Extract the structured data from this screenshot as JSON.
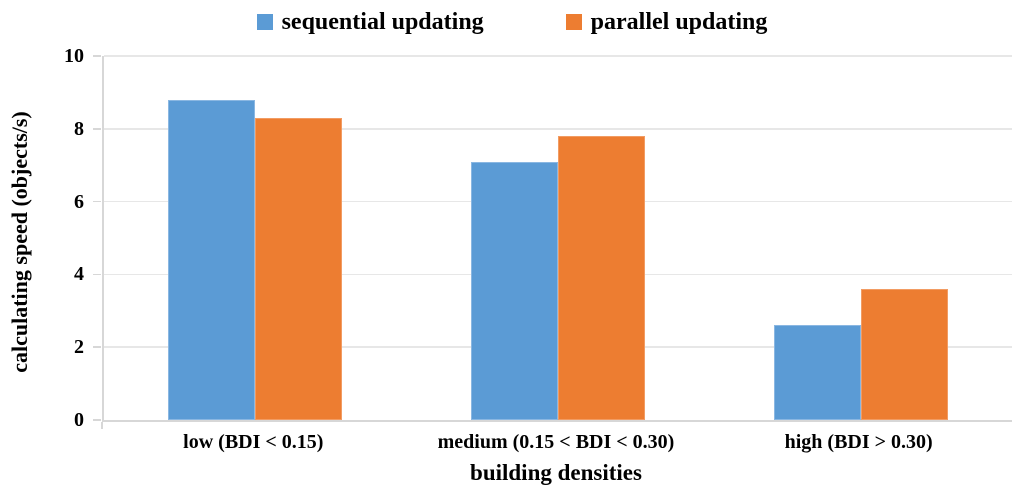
{
  "chart_data": {
    "type": "bar",
    "title": "",
    "categories": [
      "low (BDI < 0.15)",
      "medium (0.15 < BDI < 0.30)",
      "high (BDI > 0.30)"
    ],
    "series": [
      {
        "name": "sequential updating",
        "color": "#5b9bd5",
        "values": [
          8.8,
          7.1,
          2.6
        ]
      },
      {
        "name": "parallel updating",
        "color": "#ed7d31",
        "values": [
          8.3,
          7.8,
          3.6
        ]
      }
    ],
    "xlabel": "building densities",
    "ylabel": "calculating speed (objects/s)",
    "ylim": [
      0,
      10
    ],
    "yticks": [
      0,
      2,
      4,
      6,
      8,
      10
    ],
    "grid": true,
    "legend_position": "top"
  }
}
